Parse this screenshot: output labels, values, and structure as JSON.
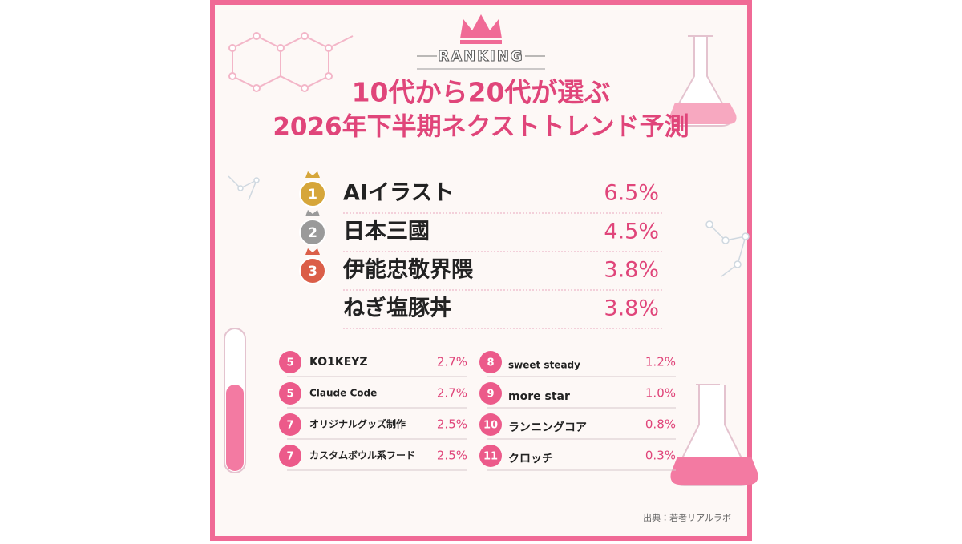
{
  "header": {
    "label": "RANKING",
    "title": [
      "10代から20代が選ぶ",
      "2026年下半期ネクストトレンド予測"
    ]
  },
  "top_ranking": [
    {
      "rank": 1,
      "name": "AIイラスト",
      "share": "6.5%"
    },
    {
      "rank": 2,
      "name": "日本三國",
      "share": "4.5%"
    },
    {
      "rank": 3,
      "name": "伊能忠敬界隈",
      "share": "3.8%"
    },
    {
      "name": "ねぎ塩豚丼",
      "share": "3.8%"
    }
  ],
  "more_ranking": [
    {
      "rank": 5,
      "name": "KO1KEYZ",
      "share": "2.7%"
    },
    {
      "rank": 5,
      "name": "Claude Code",
      "share": "2.7%"
    },
    {
      "rank": 7,
      "name": "オリジナルグッズ制作",
      "share": "2.5%"
    },
    {
      "rank": 7,
      "name": "カスタムボウル系フード",
      "share": "2.5%"
    },
    {
      "rank": 8,
      "name": "sweet steady",
      "share": "1.2%"
    },
    {
      "rank": 9,
      "name": "more star",
      "share": "1.0%"
    },
    {
      "rank": 10,
      "name": "ランニングコア",
      "share": "0.8%"
    },
    {
      "rank": 11,
      "name": "クロッチ",
      "share": "0.3%"
    }
  ],
  "source": "出典：若者リアルラボ"
}
